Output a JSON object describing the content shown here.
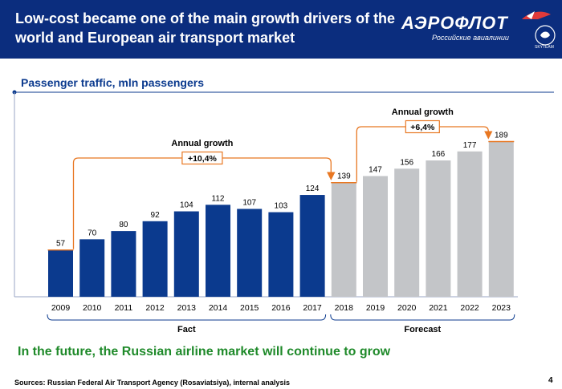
{
  "header": {
    "title": "Low-cost became one of the main growth drivers of the world and European air transport market",
    "logo_text": "АЭРОФЛОТ",
    "logo_subtext": "Российские авиалинии",
    "logo_badge": "SKYTEAM"
  },
  "subtitle": "Passenger traffic, mln passengers",
  "lead_text": "In the future, the Russian airline market will continue to grow",
  "sources": "Sources: Russian Federal Air Transport Agency (Rosaviatsiya), internal analysis",
  "page_number": "4",
  "colors": {
    "header": "#0b2d7e",
    "fact_bar": "#0b3a8e",
    "forecast_bar": "#c3c5c8",
    "annotation": "#e87722",
    "lead": "#1f8a2a"
  },
  "chart_data": {
    "type": "bar",
    "categories": [
      "2009",
      "2010",
      "2011",
      "2012",
      "2013",
      "2014",
      "2015",
      "2016",
      "2017",
      "2018",
      "2019",
      "2020",
      "2021",
      "2022",
      "2023"
    ],
    "values": [
      57,
      70,
      80,
      92,
      104,
      112,
      107,
      103,
      124,
      139,
      147,
      156,
      166,
      177,
      189
    ],
    "kinds": [
      "fact",
      "fact",
      "fact",
      "fact",
      "fact",
      "fact",
      "fact",
      "fact",
      "fact",
      "forecast",
      "forecast",
      "forecast",
      "forecast",
      "forecast",
      "forecast"
    ],
    "ylim": [
      0,
      210
    ],
    "groups": [
      {
        "label": "Fact",
        "range": [
          "2009",
          "2017"
        ]
      },
      {
        "label": "Forecast",
        "range": [
          "2018",
          "2023"
        ]
      }
    ],
    "annotations": [
      {
        "title": "Annual growth",
        "value": "+10,4%",
        "from": "2009",
        "to": "2018"
      },
      {
        "title": "Annual growth",
        "value": "+6,4%",
        "from": "2018",
        "to": "2023"
      }
    ]
  }
}
